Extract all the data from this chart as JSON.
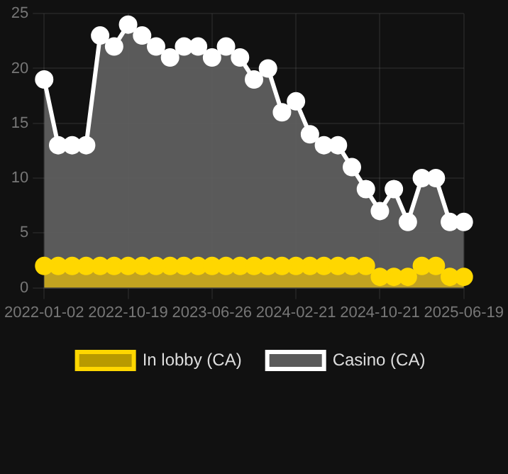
{
  "chart_data": {
    "type": "area",
    "categories": [
      "2022-01-02",
      null,
      null,
      null,
      null,
      null,
      "2022-10-19",
      null,
      null,
      null,
      null,
      null,
      "2023-06-26",
      null,
      null,
      null,
      null,
      null,
      "2024-02-21",
      null,
      null,
      null,
      null,
      null,
      "2024-10-21",
      null,
      null,
      null,
      null,
      null,
      "2025-06-19"
    ],
    "series": [
      {
        "name": "In lobby (CA)",
        "color": "#ffd700",
        "values": [
          2,
          2,
          2,
          2,
          2,
          2,
          2,
          2,
          2,
          2,
          2,
          2,
          2,
          2,
          2,
          2,
          2,
          2,
          2,
          2,
          2,
          2,
          2,
          2,
          1,
          1,
          1,
          2,
          2,
          1,
          1
        ]
      },
      {
        "name": "Casino (CA)",
        "color": "#ffffff",
        "values": [
          19,
          13,
          13,
          13,
          23,
          22,
          24,
          23,
          22,
          21,
          22,
          22,
          21,
          22,
          21,
          19,
          20,
          16,
          17,
          14,
          13,
          13,
          11,
          9,
          7,
          9,
          6,
          10,
          10,
          6,
          6
        ]
      }
    ],
    "ylim": [
      0,
      25
    ],
    "yticks": [
      0,
      5,
      10,
      15,
      20,
      25
    ],
    "grid": true,
    "legend": "bottom",
    "marker": "circle"
  }
}
